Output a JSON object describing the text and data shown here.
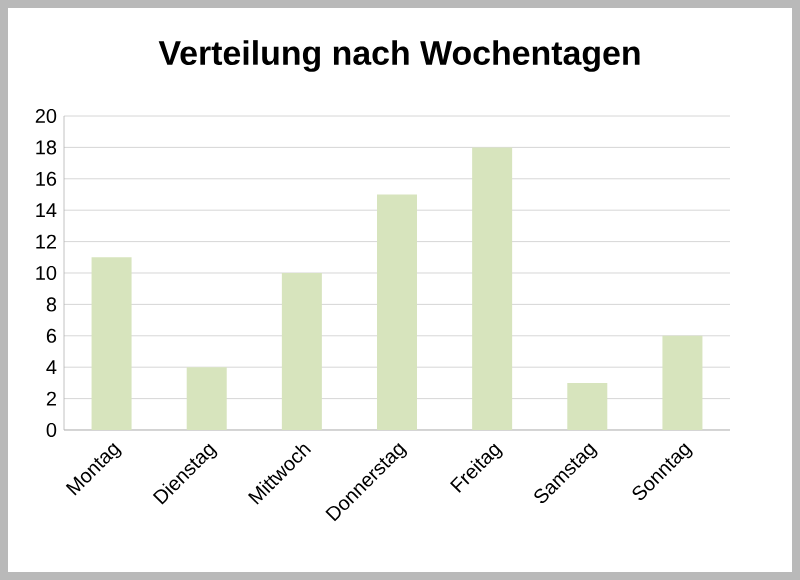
{
  "chart_data": {
    "type": "bar",
    "title": "Verteilung nach Wochentagen",
    "categories": [
      "Montag",
      "Dienstag",
      "Mittwoch",
      "Donnerstag",
      "Freitag",
      "Samstag",
      "Sonntag"
    ],
    "values": [
      11,
      4,
      10,
      15,
      18,
      3,
      6
    ],
    "color": "#d7e4bd",
    "ylim": [
      0,
      20
    ],
    "yticks": [
      0,
      2,
      4,
      6,
      8,
      10,
      12,
      14,
      16,
      18,
      20
    ],
    "grid": "y"
  }
}
